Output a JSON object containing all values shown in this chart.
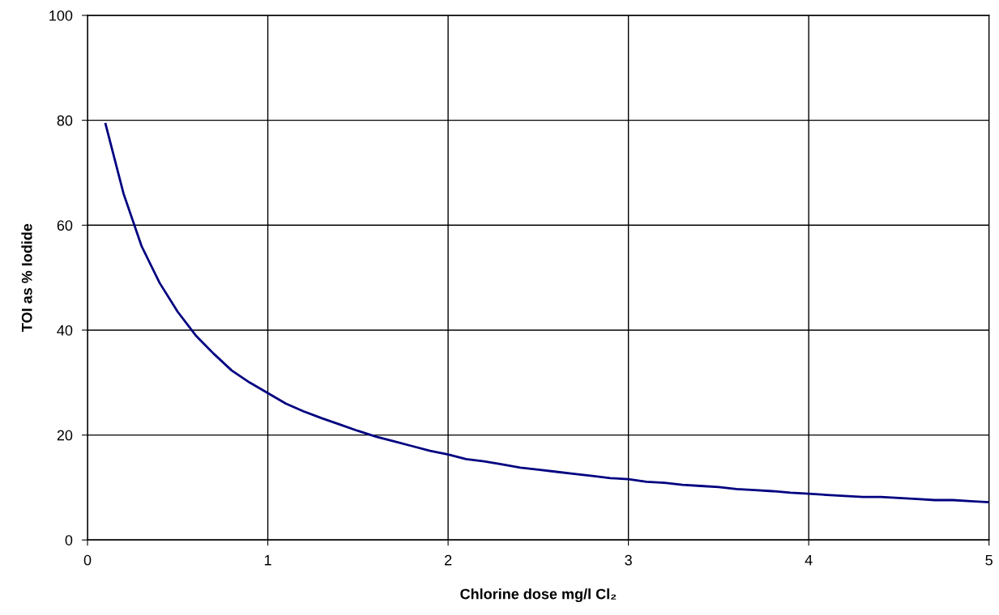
{
  "chart_data": {
    "type": "line",
    "xlabel": "Chlorine dose mg/l Cl₂",
    "ylabel": "TOI as % Iodide",
    "x": [
      0.1,
      0.2,
      0.3,
      0.4,
      0.5,
      0.6,
      0.7,
      0.8,
      0.9,
      1.0,
      1.1,
      1.2,
      1.3,
      1.4,
      1.5,
      1.6,
      1.7,
      1.8,
      1.9,
      2.0,
      2.1,
      2.2,
      2.3,
      2.4,
      2.5,
      2.6,
      2.7,
      2.8,
      2.9,
      3.0,
      3.1,
      3.2,
      3.3,
      3.4,
      3.5,
      3.6,
      3.7,
      3.8,
      3.9,
      4.0,
      4.1,
      4.2,
      4.3,
      4.4,
      4.5,
      4.6,
      4.7,
      4.8,
      4.9,
      5.0
    ],
    "series": [
      {
        "color": "#000080",
        "values": [
          79.3,
          66,
          56,
          49,
          43.5,
          39,
          35.5,
          32.3,
          30,
          28,
          26,
          24.5,
          23.2,
          22,
          20.8,
          19.7,
          18.8,
          17.9,
          17,
          16.3,
          15.4,
          15,
          14.4,
          13.8,
          13.4,
          13,
          12.6,
          12.2,
          11.8,
          11.6,
          11.1,
          10.9,
          10.5,
          10.3,
          10.1,
          9.7,
          9.5,
          9.3,
          9.0,
          8.8,
          8.6,
          8.4,
          8.2,
          8.2,
          8.0,
          7.8,
          7.6,
          7.6,
          7.4,
          7.2
        ]
      }
    ],
    "xlim": [
      0,
      5
    ],
    "xticks": [
      0,
      1,
      2,
      3,
      4,
      5
    ],
    "ylim": [
      0,
      100
    ],
    "yticks": [
      0,
      20,
      40,
      60,
      80,
      100
    ],
    "grid": true,
    "marker": "none",
    "line_style": "solid"
  }
}
